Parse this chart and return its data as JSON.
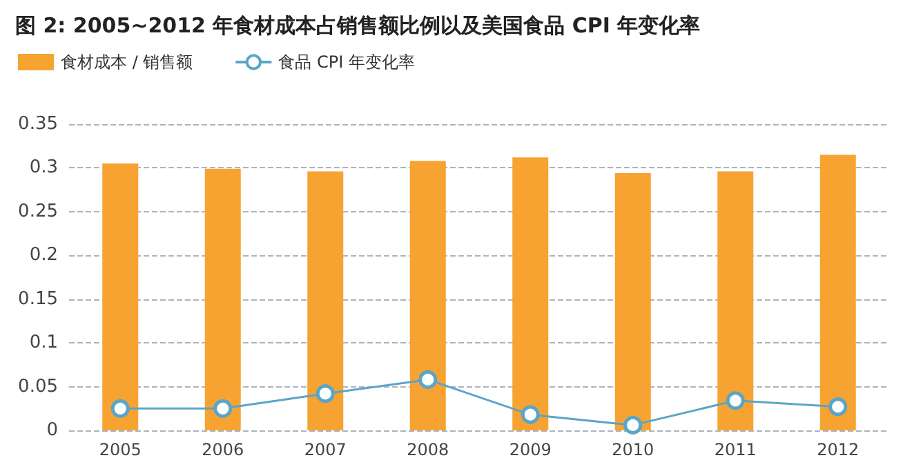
{
  "chart_data": {
    "type": "bar",
    "title": "图 2: 2005~2012 年食材成本占销售额比例以及美国食品 CPI 年变化率",
    "categories": [
      "2005",
      "2006",
      "2007",
      "2008",
      "2009",
      "2010",
      "2011",
      "2012"
    ],
    "series": [
      {
        "name": "食材成本 / 销售额",
        "color": "#f7a331",
        "values": [
          0.305,
          0.299,
          0.296,
          0.308,
          0.312,
          0.294,
          0.296,
          0.315
        ]
      },
      {
        "name": "食品 CPI 年变化率",
        "type": "line",
        "color": "#5aa5c8",
        "marker": "circle",
        "values": [
          0.025,
          0.025,
          0.042,
          0.058,
          0.018,
          0.006,
          0.034,
          0.027
        ]
      }
    ],
    "ylim": [
      0,
      0.35
    ],
    "yticks": [
      0,
      0.05,
      0.1,
      0.15,
      0.2,
      0.25,
      0.3,
      0.35
    ],
    "grid": "y",
    "legend": "top left"
  }
}
